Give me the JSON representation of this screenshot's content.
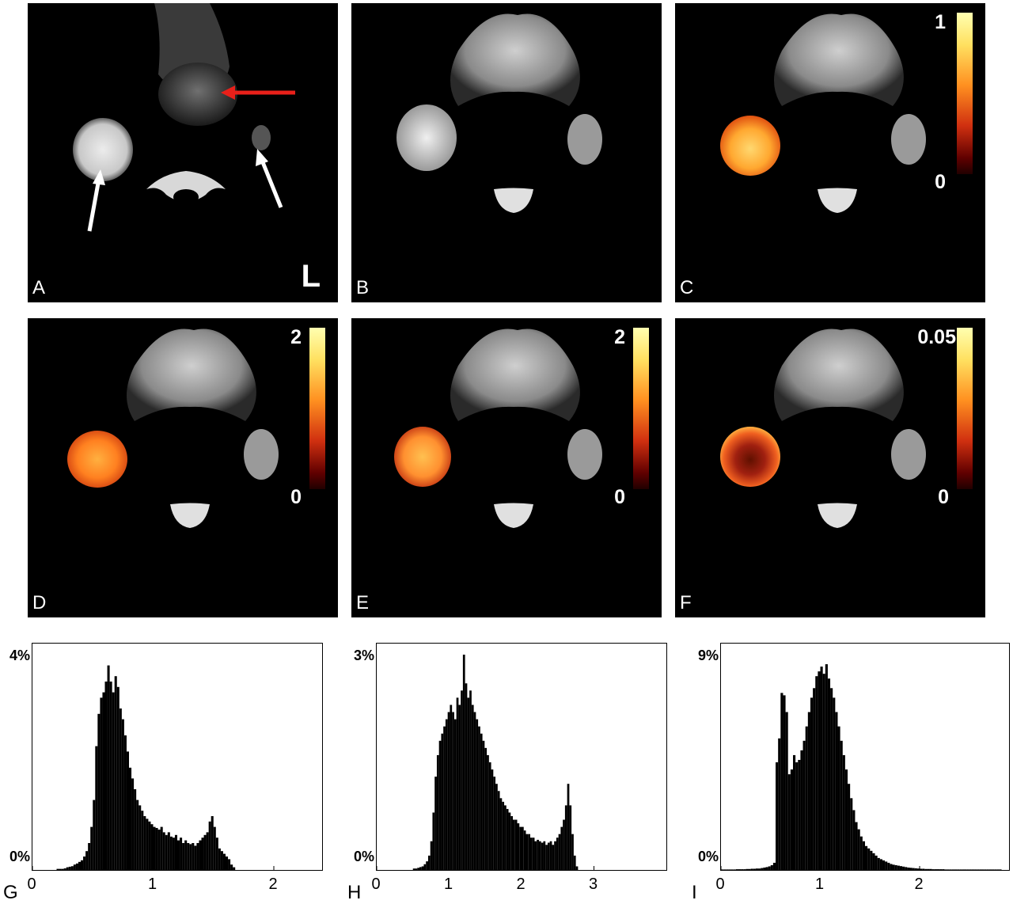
{
  "panels": {
    "A": {
      "label": "A",
      "orientation": "L"
    },
    "B": {
      "label": "B"
    },
    "C": {
      "label": "C",
      "colorbar": {
        "max": "1",
        "min": "0"
      }
    },
    "D": {
      "label": "D",
      "colorbar": {
        "max": "2",
        "min": "0"
      }
    },
    "E": {
      "label": "E",
      "colorbar": {
        "max": "2",
        "min": "0"
      }
    },
    "F": {
      "label": "F",
      "colorbar": {
        "max": "0.05",
        "min": "0"
      }
    }
  },
  "colors": {
    "arrow_red": "#e8201a",
    "arrow_white": "#ffffff",
    "overlay": "#ff9a20"
  },
  "chart_data": [
    {
      "type": "bar",
      "panel": "G",
      "y_top_label": "4%",
      "y_bottom_label": "0%",
      "xlim": [
        0,
        2.4
      ],
      "ylim": [
        0,
        4
      ],
      "xticks": [
        "0",
        "1",
        "2"
      ],
      "xtick_values": [
        0,
        1,
        2
      ],
      "bin_start": 0.2,
      "bin_width": 0.02,
      "values": [
        0.02,
        0.02,
        0.02,
        0.03,
        0.05,
        0.06,
        0.07,
        0.1,
        0.12,
        0.15,
        0.18,
        0.25,
        0.35,
        0.5,
        0.8,
        1.3,
        2.3,
        2.9,
        3.2,
        3.3,
        3.5,
        3.8,
        3.5,
        3.3,
        3.6,
        3.4,
        3.0,
        2.8,
        2.5,
        2.2,
        1.9,
        1.7,
        1.5,
        1.3,
        1.2,
        1.1,
        1.0,
        0.95,
        0.9,
        0.85,
        0.8,
        0.78,
        0.75,
        0.8,
        0.7,
        0.65,
        0.7,
        0.62,
        0.6,
        0.65,
        0.55,
        0.6,
        0.5,
        0.55,
        0.5,
        0.48,
        0.5,
        0.45,
        0.5,
        0.55,
        0.6,
        0.65,
        0.7,
        0.9,
        1.0,
        0.8,
        0.6,
        0.4,
        0.35,
        0.3,
        0.25,
        0.2,
        0.1,
        0.05
      ]
    },
    {
      "type": "bar",
      "panel": "H",
      "y_top_label": "3%",
      "y_bottom_label": "0%",
      "xlim": [
        0,
        4.0
      ],
      "ylim": [
        0,
        3
      ],
      "xticks": [
        "0",
        "1",
        "2",
        "3"
      ],
      "xtick_values": [
        0,
        1,
        2,
        3
      ],
      "bin_start": 0.5,
      "bin_width": 0.03,
      "values": [
        0.02,
        0.02,
        0.03,
        0.04,
        0.05,
        0.08,
        0.12,
        0.2,
        0.4,
        0.8,
        1.3,
        1.6,
        1.8,
        1.9,
        2.0,
        2.1,
        2.2,
        2.3,
        2.2,
        2.1,
        2.4,
        2.3,
        2.5,
        3.0,
        2.6,
        2.4,
        2.5,
        2.3,
        2.2,
        2.1,
        2.0,
        1.9,
        1.8,
        1.7,
        1.6,
        1.5,
        1.4,
        1.3,
        1.2,
        1.1,
        1.0,
        0.95,
        0.9,
        0.85,
        0.8,
        0.75,
        0.7,
        0.7,
        0.65,
        0.6,
        0.6,
        0.55,
        0.5,
        0.5,
        0.45,
        0.45,
        0.4,
        0.42,
        0.4,
        0.38,
        0.4,
        0.35,
        0.38,
        0.4,
        0.35,
        0.4,
        0.45,
        0.5,
        0.6,
        0.7,
        0.9,
        1.2,
        0.9,
        0.5,
        0.2,
        0.05
      ]
    },
    {
      "type": "bar",
      "panel": "I",
      "y_top_label": "9%",
      "y_bottom_label": "0%",
      "xlim": [
        0,
        2.9
      ],
      "ylim": [
        0,
        9
      ],
      "xticks": [
        "0",
        "1",
        "2"
      ],
      "xtick_values": [
        0,
        1,
        2
      ],
      "bin_start": 0.0,
      "bin_width": 0.025,
      "values": [
        0.02,
        0.02,
        0.02,
        0.02,
        0.02,
        0.02,
        0.03,
        0.03,
        0.03,
        0.03,
        0.04,
        0.04,
        0.05,
        0.05,
        0.06,
        0.06,
        0.08,
        0.1,
        0.12,
        0.15,
        0.2,
        0.3,
        4.5,
        5.5,
        7.4,
        7.3,
        6.6,
        4.0,
        4.2,
        4.8,
        4.5,
        4.6,
        5.0,
        5.4,
        6.0,
        6.6,
        7.2,
        7.6,
        8.1,
        8.3,
        8.5,
        8.2,
        8.6,
        8.0,
        7.6,
        7.2,
        6.6,
        6.0,
        5.4,
        4.8,
        4.2,
        3.6,
        3.0,
        2.5,
        2.0,
        1.7,
        1.4,
        1.2,
        1.0,
        0.9,
        0.8,
        0.7,
        0.6,
        0.5,
        0.45,
        0.4,
        0.35,
        0.3,
        0.25,
        0.22,
        0.2,
        0.18,
        0.16,
        0.14,
        0.12,
        0.1,
        0.09,
        0.08,
        0.07,
        0.06,
        0.05,
        0.05,
        0.04,
        0.04,
        0.04,
        0.03,
        0.03,
        0.03,
        0.03,
        0.03,
        0.02,
        0.02,
        0.02,
        0.02,
        0.02,
        0.02,
        0.02,
        0.02,
        0.02,
        0.02,
        0.02,
        0.02,
        0.02,
        0.02,
        0.02,
        0.02,
        0.02,
        0.02,
        0.02,
        0.02,
        0.02,
        0.02,
        0.02
      ]
    }
  ]
}
